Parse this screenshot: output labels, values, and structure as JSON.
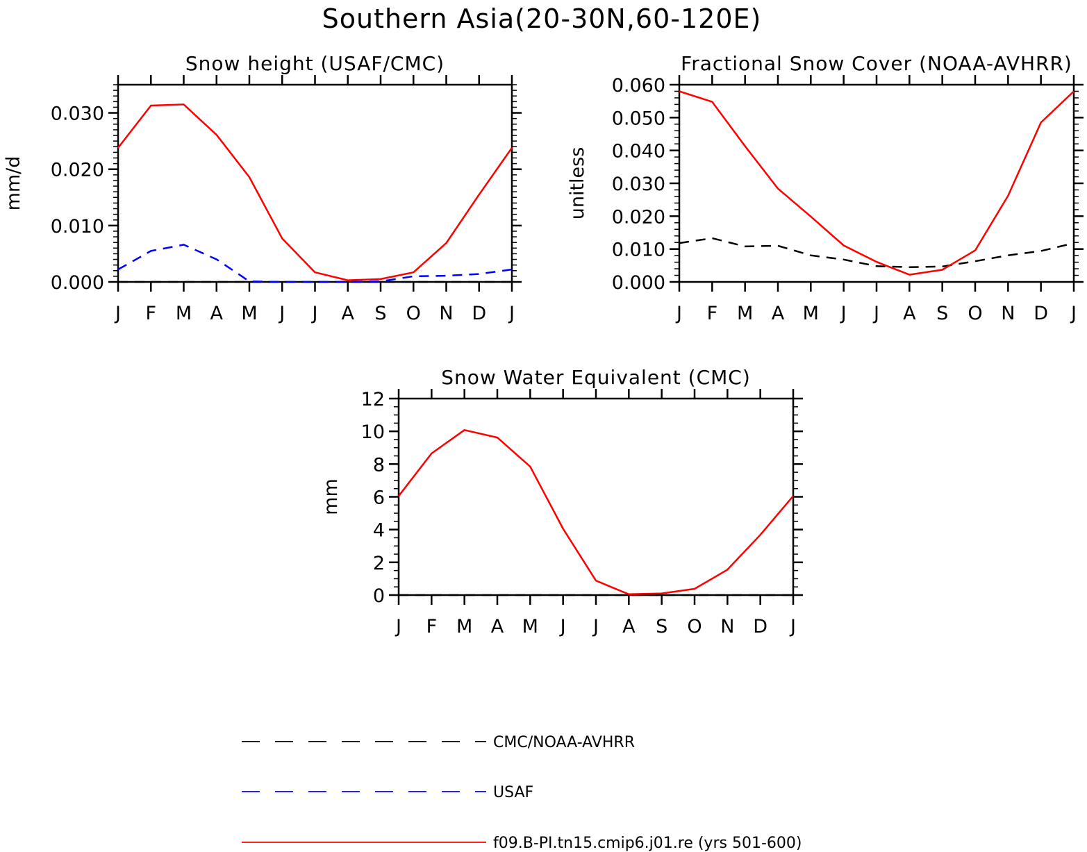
{
  "figure": {
    "title": "Southern Asia(20-30N,60-120E)"
  },
  "chart_data": [
    {
      "type": "line",
      "title": "Snow height (USAF/CMC)",
      "xlabel": "",
      "ylabel": "mm/d",
      "x_ticks": [
        "J",
        "F",
        "M",
        "A",
        "M",
        "J",
        "J",
        "A",
        "S",
        "O",
        "N",
        "D",
        "J"
      ],
      "y_ticks": [
        "0.000",
        "0.010",
        "0.020",
        "0.030"
      ],
      "ylim": [
        0,
        0.035
      ],
      "grid": false,
      "series": [
        {
          "name": "CMC/NOAA-AVHRR",
          "color": "#000000",
          "dash": "dashed",
          "values": [
            0,
            0,
            0,
            0,
            0,
            0,
            0,
            0,
            0,
            0,
            0,
            0,
            0
          ]
        },
        {
          "name": "USAF",
          "color": "#0000ff",
          "dash": "dashed",
          "values": [
            0.0022,
            0.0055,
            0.0066,
            0.004,
            0.0001,
            0,
            0,
            0,
            0.0001,
            0.001,
            0.0011,
            0.0014,
            0.0022
          ]
        },
        {
          "name": "f09.B-PI.tn15.cmip6.j01.re (yrs 501-600)",
          "color": "#ff0000",
          "dash": "solid",
          "values": [
            0.0238,
            0.0313,
            0.0315,
            0.0261,
            0.0186,
            0.0077,
            0.0017,
            0.0003,
            0.0005,
            0.0017,
            0.0069,
            0.0155,
            0.0238
          ]
        }
      ]
    },
    {
      "type": "line",
      "title": "Fractional Snow Cover (NOAA-AVHRR)",
      "xlabel": "",
      "ylabel": "unitless",
      "x_ticks": [
        "J",
        "F",
        "M",
        "A",
        "M",
        "J",
        "J",
        "A",
        "S",
        "O",
        "N",
        "D",
        "J"
      ],
      "y_ticks": [
        "0.000",
        "0.010",
        "0.020",
        "0.030",
        "0.040",
        "0.050",
        "0.060"
      ],
      "ylim": [
        0,
        0.06
      ],
      "grid": false,
      "series": [
        {
          "name": "CMC/NOAA-AVHRR",
          "color": "#000000",
          "dash": "dashed",
          "values": [
            0.0118,
            0.0133,
            0.0108,
            0.011,
            0.0081,
            0.0068,
            0.0048,
            0.0045,
            0.0047,
            0.0063,
            0.0081,
            0.0094,
            0.0118
          ]
        },
        {
          "name": "f09.B-PI.tn15.cmip6.j01.re (yrs 501-600)",
          "color": "#ff0000",
          "dash": "solid",
          "values": [
            0.058,
            0.0548,
            0.0413,
            0.0284,
            0.0199,
            0.0111,
            0.0061,
            0.0022,
            0.0037,
            0.0096,
            0.0262,
            0.0485,
            0.058
          ]
        }
      ]
    },
    {
      "type": "line",
      "title": "Snow Water Equivalent (CMC)",
      "xlabel": "",
      "ylabel": "mm",
      "x_ticks": [
        "J",
        "F",
        "M",
        "A",
        "M",
        "J",
        "J",
        "A",
        "S",
        "O",
        "N",
        "D",
        "J"
      ],
      "y_ticks": [
        "0",
        "2",
        "4",
        "6",
        "8",
        "10",
        "12"
      ],
      "ylim": [
        0,
        12
      ],
      "grid": false,
      "series": [
        {
          "name": "CMC/NOAA-AVHRR",
          "color": "#000000",
          "dash": "dashed",
          "values": [
            0,
            0,
            0,
            0,
            0,
            0,
            0,
            0,
            0,
            0,
            0,
            0,
            0
          ]
        },
        {
          "name": "f09.B-PI.tn15.cmip6.j01.re (yrs 501-600)",
          "color": "#ff0000",
          "dash": "solid",
          "values": [
            6.05,
            8.65,
            10.08,
            9.62,
            7.85,
            4.05,
            0.88,
            0.05,
            0.1,
            0.38,
            1.55,
            3.68,
            6.05
          ]
        }
      ]
    }
  ],
  "legend": {
    "placement": "bottom",
    "entries": [
      {
        "label": "CMC/NOAA-AVHRR",
        "color": "#000000",
        "dash": "dashed"
      },
      {
        "label": "USAF",
        "color": "#0000ff",
        "dash": "dashed"
      },
      {
        "label": "f09.B-PI.tn15.cmip6.j01.re (yrs 501-600)",
        "color": "#ff0000",
        "dash": "solid"
      }
    ]
  }
}
